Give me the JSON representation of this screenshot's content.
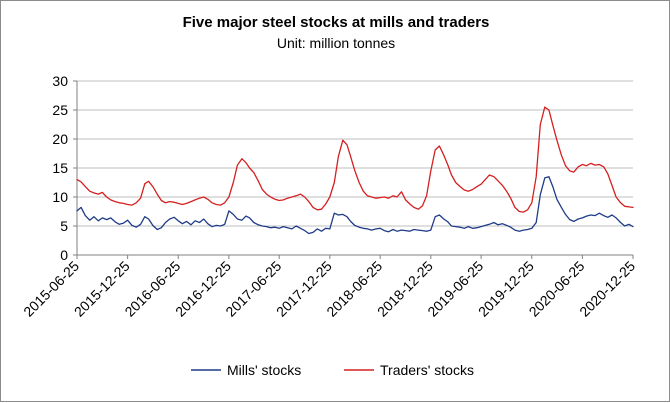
{
  "chart_data": {
    "type": "line",
    "title": "Five major steel stocks  at mills and traders",
    "subtitle": "Unit: million tonnes",
    "xlabel": "",
    "ylabel": "",
    "ylim": [
      0,
      30
    ],
    "yticks": [
      0,
      5,
      10,
      15,
      20,
      25,
      30
    ],
    "xlim": [
      "2015-06-25",
      "2020-12-25"
    ],
    "xticks": [
      "2015-06-25",
      "2015-12-25",
      "2016-06-25",
      "2016-12-25",
      "2017-06-25",
      "2017-12-25",
      "2018-06-25",
      "2018-12-25",
      "2019-06-25",
      "2019-12-25",
      "2020-06-25",
      "2020-12-25"
    ],
    "grid": "horizontal",
    "legend": "bottom",
    "series": [
      {
        "name": "Mills' stocks",
        "color": "#1f3c88",
        "points": [
          [
            "2015-06-25",
            7.6
          ],
          [
            "2015-07-10",
            8.2
          ],
          [
            "2015-07-25",
            6.8
          ],
          [
            "2015-08-10",
            6.0
          ],
          [
            "2015-08-25",
            6.6
          ],
          [
            "2015-09-10",
            5.9
          ],
          [
            "2015-09-25",
            6.4
          ],
          [
            "2015-10-10",
            6.1
          ],
          [
            "2015-10-25",
            6.4
          ],
          [
            "2015-11-10",
            5.7
          ],
          [
            "2015-11-25",
            5.3
          ],
          [
            "2015-12-10",
            5.5
          ],
          [
            "2015-12-25",
            6.0
          ],
          [
            "2016-01-10",
            5.1
          ],
          [
            "2016-01-25",
            4.8
          ],
          [
            "2016-02-10",
            5.3
          ],
          [
            "2016-02-25",
            6.6
          ],
          [
            "2016-03-10",
            6.2
          ],
          [
            "2016-03-25",
            5.1
          ],
          [
            "2016-04-10",
            4.4
          ],
          [
            "2016-04-25",
            4.7
          ],
          [
            "2016-05-10",
            5.6
          ],
          [
            "2016-05-25",
            6.2
          ],
          [
            "2016-06-10",
            6.5
          ],
          [
            "2016-06-25",
            5.9
          ],
          [
            "2016-07-10",
            5.4
          ],
          [
            "2016-07-25",
            5.8
          ],
          [
            "2016-08-10",
            5.2
          ],
          [
            "2016-08-25",
            5.9
          ],
          [
            "2016-09-10",
            5.6
          ],
          [
            "2016-09-25",
            6.2
          ],
          [
            "2016-10-10",
            5.4
          ],
          [
            "2016-10-25",
            4.9
          ],
          [
            "2016-11-10",
            5.1
          ],
          [
            "2016-11-25",
            5.0
          ],
          [
            "2016-12-10",
            5.3
          ],
          [
            "2016-12-25",
            7.6
          ],
          [
            "2017-01-10",
            7.0
          ],
          [
            "2017-01-25",
            6.2
          ],
          [
            "2017-02-10",
            6.0
          ],
          [
            "2017-02-25",
            6.7
          ],
          [
            "2017-03-10",
            6.4
          ],
          [
            "2017-03-25",
            5.6
          ],
          [
            "2017-04-10",
            5.2
          ],
          [
            "2017-04-25",
            5.0
          ],
          [
            "2017-05-10",
            4.9
          ],
          [
            "2017-05-25",
            4.7
          ],
          [
            "2017-06-10",
            4.8
          ],
          [
            "2017-06-25",
            4.6
          ],
          [
            "2017-07-10",
            4.9
          ],
          [
            "2017-07-25",
            4.7
          ],
          [
            "2017-08-10",
            4.5
          ],
          [
            "2017-08-25",
            5.0
          ],
          [
            "2017-09-10",
            4.6
          ],
          [
            "2017-09-25",
            4.2
          ],
          [
            "2017-10-10",
            3.7
          ],
          [
            "2017-10-25",
            3.9
          ],
          [
            "2017-11-10",
            4.5
          ],
          [
            "2017-11-25",
            4.1
          ],
          [
            "2017-12-10",
            4.6
          ],
          [
            "2017-12-25",
            4.5
          ],
          [
            "2018-01-10",
            7.2
          ],
          [
            "2018-01-25",
            6.9
          ],
          [
            "2018-02-10",
            7.0
          ],
          [
            "2018-02-25",
            6.6
          ],
          [
            "2018-03-10",
            5.8
          ],
          [
            "2018-03-25",
            5.1
          ],
          [
            "2018-04-10",
            4.8
          ],
          [
            "2018-04-25",
            4.6
          ],
          [
            "2018-05-10",
            4.5
          ],
          [
            "2018-05-25",
            4.3
          ],
          [
            "2018-06-10",
            4.5
          ],
          [
            "2018-06-25",
            4.6
          ],
          [
            "2018-07-10",
            4.2
          ],
          [
            "2018-07-25",
            4.0
          ],
          [
            "2018-08-10",
            4.4
          ],
          [
            "2018-08-25",
            4.1
          ],
          [
            "2018-09-10",
            4.3
          ],
          [
            "2018-09-25",
            4.2
          ],
          [
            "2018-10-10",
            4.1
          ],
          [
            "2018-10-25",
            4.4
          ],
          [
            "2018-11-10",
            4.3
          ],
          [
            "2018-11-25",
            4.2
          ],
          [
            "2018-12-10",
            4.1
          ],
          [
            "2018-12-25",
            4.3
          ],
          [
            "2019-01-10",
            6.6
          ],
          [
            "2019-01-25",
            6.9
          ],
          [
            "2019-02-10",
            6.2
          ],
          [
            "2019-02-25",
            5.7
          ],
          [
            "2019-03-10",
            5.0
          ],
          [
            "2019-03-25",
            4.9
          ],
          [
            "2019-04-10",
            4.8
          ],
          [
            "2019-04-25",
            4.6
          ],
          [
            "2019-05-10",
            4.9
          ],
          [
            "2019-05-25",
            4.6
          ],
          [
            "2019-06-10",
            4.7
          ],
          [
            "2019-06-25",
            4.9
          ],
          [
            "2019-07-10",
            5.1
          ],
          [
            "2019-07-25",
            5.3
          ],
          [
            "2019-08-10",
            5.6
          ],
          [
            "2019-08-25",
            5.2
          ],
          [
            "2019-09-10",
            5.4
          ],
          [
            "2019-09-25",
            5.1
          ],
          [
            "2019-10-10",
            4.8
          ],
          [
            "2019-10-25",
            4.3
          ],
          [
            "2019-11-10",
            4.1
          ],
          [
            "2019-11-25",
            4.3
          ],
          [
            "2019-12-10",
            4.4
          ],
          [
            "2019-12-25",
            4.6
          ],
          [
            "2020-01-10",
            5.6
          ],
          [
            "2020-01-25",
            10.4
          ],
          [
            "2020-02-10",
            13.3
          ],
          [
            "2020-02-25",
            13.5
          ],
          [
            "2020-03-10",
            11.8
          ],
          [
            "2020-03-25",
            9.6
          ],
          [
            "2020-04-10",
            8.2
          ],
          [
            "2020-04-25",
            7.0
          ],
          [
            "2020-05-10",
            6.1
          ],
          [
            "2020-05-25",
            5.8
          ],
          [
            "2020-06-10",
            6.2
          ],
          [
            "2020-06-25",
            6.4
          ],
          [
            "2020-07-10",
            6.7
          ],
          [
            "2020-07-25",
            6.9
          ],
          [
            "2020-08-10",
            6.8
          ],
          [
            "2020-08-25",
            7.2
          ],
          [
            "2020-09-10",
            6.8
          ],
          [
            "2020-09-25",
            6.5
          ],
          [
            "2020-10-10",
            6.9
          ],
          [
            "2020-10-25",
            6.4
          ],
          [
            "2020-11-10",
            5.6
          ],
          [
            "2020-11-25",
            5.0
          ],
          [
            "2020-12-10",
            5.3
          ],
          [
            "2020-12-25",
            4.9
          ]
        ]
      },
      {
        "name": "Traders' stocks",
        "color": "#d42020",
        "points": [
          [
            "2015-06-25",
            13.0
          ],
          [
            "2015-07-10",
            12.6
          ],
          [
            "2015-07-25",
            11.8
          ],
          [
            "2015-08-10",
            11.0
          ],
          [
            "2015-08-25",
            10.7
          ],
          [
            "2015-09-10",
            10.5
          ],
          [
            "2015-09-25",
            10.8
          ],
          [
            "2015-10-10",
            10.0
          ],
          [
            "2015-10-25",
            9.5
          ],
          [
            "2015-11-10",
            9.2
          ],
          [
            "2015-11-25",
            9.0
          ],
          [
            "2015-12-10",
            8.9
          ],
          [
            "2015-12-25",
            8.7
          ],
          [
            "2016-01-10",
            8.6
          ],
          [
            "2016-01-25",
            9.0
          ],
          [
            "2016-02-10",
            9.8
          ],
          [
            "2016-02-25",
            12.3
          ],
          [
            "2016-03-10",
            12.7
          ],
          [
            "2016-03-25",
            11.8
          ],
          [
            "2016-04-10",
            10.5
          ],
          [
            "2016-04-25",
            9.4
          ],
          [
            "2016-05-10",
            9.0
          ],
          [
            "2016-05-25",
            9.2
          ],
          [
            "2016-06-10",
            9.1
          ],
          [
            "2016-06-25",
            8.9
          ],
          [
            "2016-07-10",
            8.7
          ],
          [
            "2016-07-25",
            8.9
          ],
          [
            "2016-08-10",
            9.2
          ],
          [
            "2016-08-25",
            9.5
          ],
          [
            "2016-09-10",
            9.8
          ],
          [
            "2016-09-25",
            10.0
          ],
          [
            "2016-10-10",
            9.6
          ],
          [
            "2016-10-25",
            9.0
          ],
          [
            "2016-11-10",
            8.7
          ],
          [
            "2016-11-25",
            8.6
          ],
          [
            "2016-12-10",
            9.0
          ],
          [
            "2016-12-25",
            10.0
          ],
          [
            "2017-01-10",
            12.5
          ],
          [
            "2017-01-25",
            15.5
          ],
          [
            "2017-02-10",
            16.6
          ],
          [
            "2017-02-25",
            15.9
          ],
          [
            "2017-03-10",
            15.0
          ],
          [
            "2017-03-25",
            14.2
          ],
          [
            "2017-04-10",
            12.8
          ],
          [
            "2017-04-25",
            11.3
          ],
          [
            "2017-05-10",
            10.5
          ],
          [
            "2017-05-25",
            10.0
          ],
          [
            "2017-06-10",
            9.6
          ],
          [
            "2017-06-25",
            9.4
          ],
          [
            "2017-07-10",
            9.5
          ],
          [
            "2017-07-25",
            9.8
          ],
          [
            "2017-08-10",
            10.0
          ],
          [
            "2017-08-25",
            10.2
          ],
          [
            "2017-09-10",
            10.5
          ],
          [
            "2017-09-25",
            10.0
          ],
          [
            "2017-10-10",
            9.2
          ],
          [
            "2017-10-25",
            8.2
          ],
          [
            "2017-11-10",
            7.8
          ],
          [
            "2017-11-25",
            7.9
          ],
          [
            "2017-12-10",
            8.8
          ],
          [
            "2017-12-25",
            10.0
          ],
          [
            "2018-01-10",
            12.5
          ],
          [
            "2018-01-25",
            17.0
          ],
          [
            "2018-02-10",
            19.8
          ],
          [
            "2018-02-25",
            19.0
          ],
          [
            "2018-03-10",
            17.0
          ],
          [
            "2018-03-25",
            14.6
          ],
          [
            "2018-04-10",
            12.5
          ],
          [
            "2018-04-25",
            11.0
          ],
          [
            "2018-05-10",
            10.2
          ],
          [
            "2018-05-25",
            10.0
          ],
          [
            "2018-06-10",
            9.8
          ],
          [
            "2018-06-25",
            9.9
          ],
          [
            "2018-07-10",
            10.0
          ],
          [
            "2018-07-25",
            9.8
          ],
          [
            "2018-08-10",
            10.2
          ],
          [
            "2018-08-25",
            10.0
          ],
          [
            "2018-09-10",
            10.9
          ],
          [
            "2018-09-25",
            9.5
          ],
          [
            "2018-10-10",
            8.8
          ],
          [
            "2018-10-25",
            8.2
          ],
          [
            "2018-11-10",
            7.9
          ],
          [
            "2018-11-25",
            8.5
          ],
          [
            "2018-12-10",
            10.2
          ],
          [
            "2018-12-25",
            14.5
          ],
          [
            "2019-01-10",
            18.1
          ],
          [
            "2019-01-25",
            18.8
          ],
          [
            "2019-02-10",
            17.2
          ],
          [
            "2019-02-25",
            15.5
          ],
          [
            "2019-03-10",
            13.8
          ],
          [
            "2019-03-25",
            12.5
          ],
          [
            "2019-04-10",
            11.8
          ],
          [
            "2019-04-25",
            11.2
          ],
          [
            "2019-05-10",
            11.0
          ],
          [
            "2019-05-25",
            11.3
          ],
          [
            "2019-06-10",
            11.8
          ],
          [
            "2019-06-25",
            12.2
          ],
          [
            "2019-07-10",
            13.0
          ],
          [
            "2019-07-25",
            13.8
          ],
          [
            "2019-08-10",
            13.5
          ],
          [
            "2019-08-25",
            12.8
          ],
          [
            "2019-09-10",
            12.0
          ],
          [
            "2019-09-25",
            11.0
          ],
          [
            "2019-10-10",
            9.8
          ],
          [
            "2019-10-25",
            8.2
          ],
          [
            "2019-11-10",
            7.5
          ],
          [
            "2019-11-25",
            7.4
          ],
          [
            "2019-12-10",
            7.8
          ],
          [
            "2019-12-25",
            9.0
          ],
          [
            "2020-01-10",
            13.5
          ],
          [
            "2020-01-25",
            22.5
          ],
          [
            "2020-02-10",
            25.5
          ],
          [
            "2020-02-25",
            25.0
          ],
          [
            "2020-03-10",
            22.4
          ],
          [
            "2020-03-25",
            19.8
          ],
          [
            "2020-04-10",
            17.2
          ],
          [
            "2020-04-25",
            15.4
          ],
          [
            "2020-05-10",
            14.5
          ],
          [
            "2020-05-25",
            14.3
          ],
          [
            "2020-06-10",
            15.2
          ],
          [
            "2020-06-25",
            15.6
          ],
          [
            "2020-07-10",
            15.4
          ],
          [
            "2020-07-25",
            15.8
          ],
          [
            "2020-08-10",
            15.5
          ],
          [
            "2020-08-25",
            15.6
          ],
          [
            "2020-09-10",
            15.2
          ],
          [
            "2020-09-25",
            14.0
          ],
          [
            "2020-10-10",
            12.0
          ],
          [
            "2020-10-25",
            10.0
          ],
          [
            "2020-11-10",
            9.0
          ],
          [
            "2020-11-25",
            8.4
          ],
          [
            "2020-12-10",
            8.3
          ],
          [
            "2020-12-25",
            8.2
          ]
        ]
      }
    ]
  }
}
